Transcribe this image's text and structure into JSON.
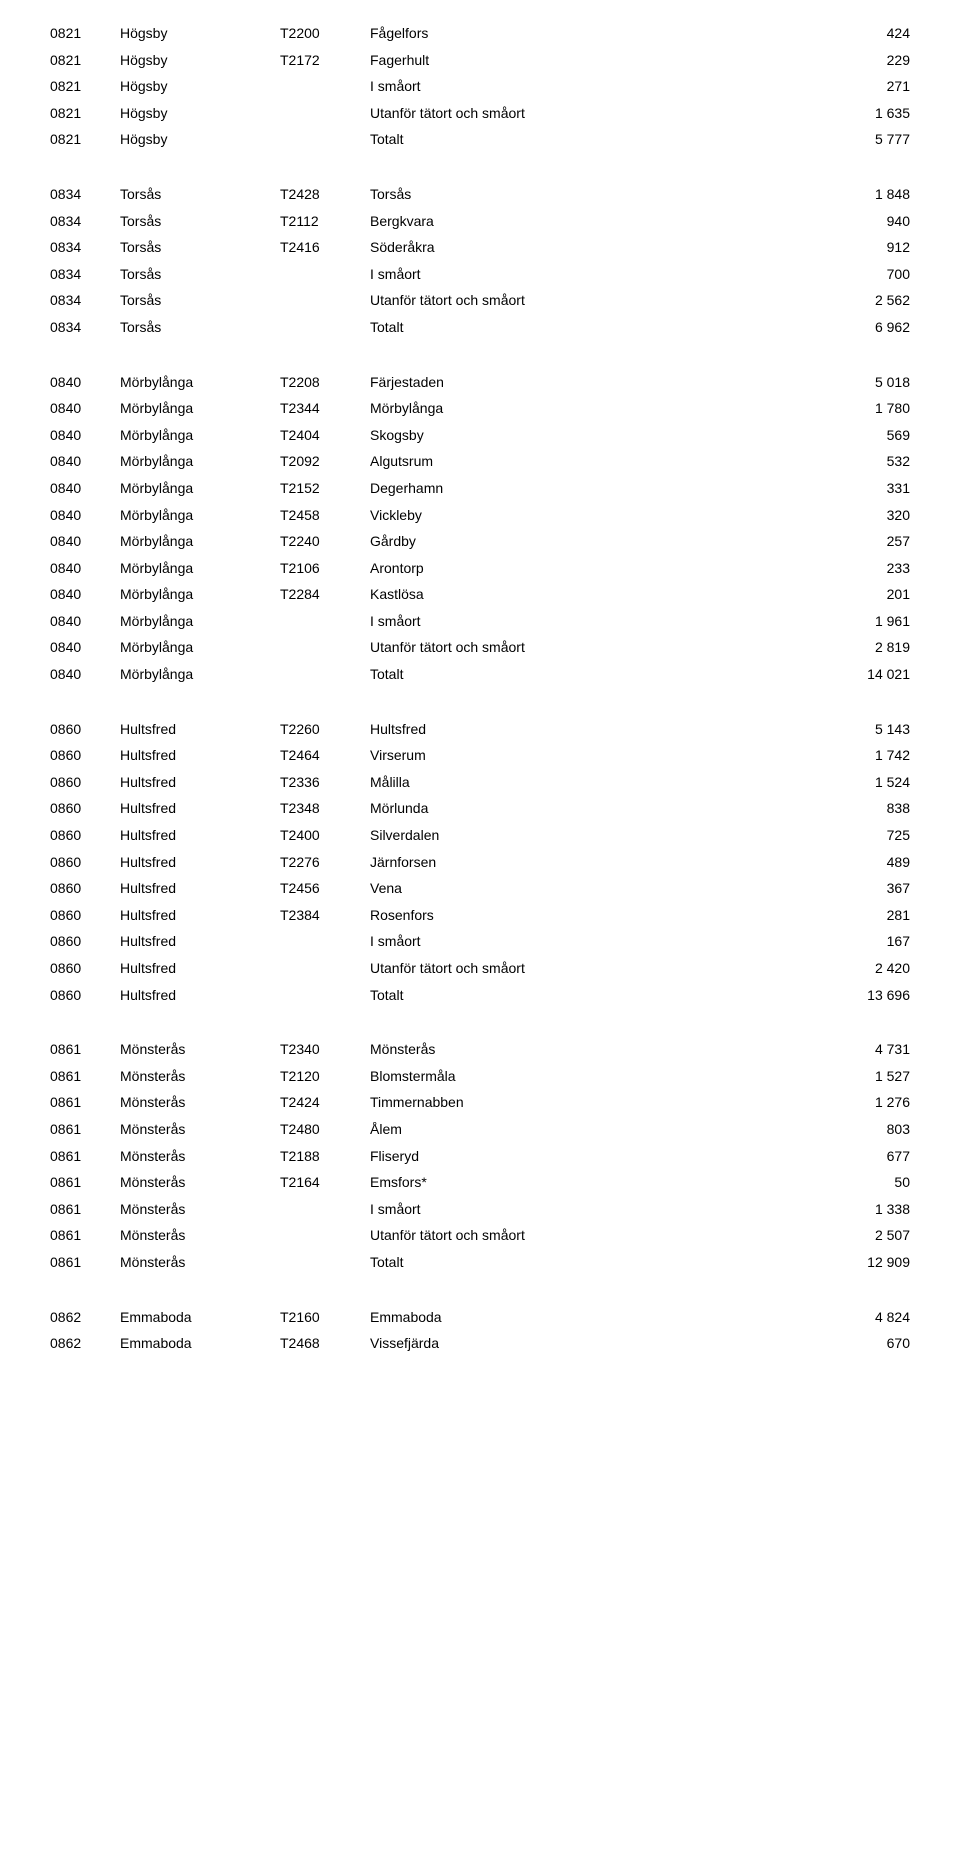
{
  "sections": [
    {
      "rows": [
        {
          "code": "0821",
          "kommun": "Högsby",
          "tcode": "T2200",
          "name": "Fågelfors",
          "val": "424"
        },
        {
          "code": "0821",
          "kommun": "Högsby",
          "tcode": "T2172",
          "name": "Fagerhult",
          "val": "229"
        },
        {
          "code": "0821",
          "kommun": "Högsby",
          "tcode": "",
          "name": "I småort",
          "val": "271"
        },
        {
          "code": "0821",
          "kommun": "Högsby",
          "tcode": "",
          "name": "Utanför tätort och småort",
          "val": "1 635"
        },
        {
          "code": "0821",
          "kommun": "Högsby",
          "tcode": "",
          "name": "Totalt",
          "val": "5 777"
        }
      ]
    },
    {
      "rows": [
        {
          "code": "0834",
          "kommun": "Torsås",
          "tcode": "T2428",
          "name": "Torsås",
          "val": "1 848"
        },
        {
          "code": "0834",
          "kommun": "Torsås",
          "tcode": "T2112",
          "name": "Bergkvara",
          "val": "940"
        },
        {
          "code": "0834",
          "kommun": "Torsås",
          "tcode": "T2416",
          "name": "Söderåkra",
          "val": "912"
        },
        {
          "code": "0834",
          "kommun": "Torsås",
          "tcode": "",
          "name": "I småort",
          "val": "700"
        },
        {
          "code": "0834",
          "kommun": "Torsås",
          "tcode": "",
          "name": "Utanför tätort och småort",
          "val": "2 562"
        },
        {
          "code": "0834",
          "kommun": "Torsås",
          "tcode": "",
          "name": "Totalt",
          "val": "6 962"
        }
      ]
    },
    {
      "rows": [
        {
          "code": "0840",
          "kommun": "Mörbylånga",
          "tcode": "T2208",
          "name": "Färjestaden",
          "val": "5 018"
        },
        {
          "code": "0840",
          "kommun": "Mörbylånga",
          "tcode": "T2344",
          "name": "Mörbylånga",
          "val": "1 780"
        },
        {
          "code": "0840",
          "kommun": "Mörbylånga",
          "tcode": "T2404",
          "name": "Skogsby",
          "val": "569"
        },
        {
          "code": "0840",
          "kommun": "Mörbylånga",
          "tcode": "T2092",
          "name": "Algutsrum",
          "val": "532"
        },
        {
          "code": "0840",
          "kommun": "Mörbylånga",
          "tcode": "T2152",
          "name": "Degerhamn",
          "val": "331"
        },
        {
          "code": "0840",
          "kommun": "Mörbylånga",
          "tcode": "T2458",
          "name": "Vickleby",
          "val": "320"
        },
        {
          "code": "0840",
          "kommun": "Mörbylånga",
          "tcode": "T2240",
          "name": "Gårdby",
          "val": "257"
        },
        {
          "code": "0840",
          "kommun": "Mörbylånga",
          "tcode": "T2106",
          "name": "Arontorp",
          "val": "233"
        },
        {
          "code": "0840",
          "kommun": "Mörbylånga",
          "tcode": "T2284",
          "name": "Kastlösa",
          "val": "201"
        },
        {
          "code": "0840",
          "kommun": "Mörbylånga",
          "tcode": "",
          "name": "I småort",
          "val": "1 961"
        },
        {
          "code": "0840",
          "kommun": "Mörbylånga",
          "tcode": "",
          "name": "Utanför tätort och småort",
          "val": "2 819"
        },
        {
          "code": "0840",
          "kommun": "Mörbylånga",
          "tcode": "",
          "name": "Totalt",
          "val": "14 021"
        }
      ]
    },
    {
      "rows": [
        {
          "code": "0860",
          "kommun": "Hultsfred",
          "tcode": "T2260",
          "name": "Hultsfred",
          "val": "5 143"
        },
        {
          "code": "0860",
          "kommun": "Hultsfred",
          "tcode": "T2464",
          "name": "Virserum",
          "val": "1 742"
        },
        {
          "code": "0860",
          "kommun": "Hultsfred",
          "tcode": "T2336",
          "name": "Målilla",
          "val": "1 524"
        },
        {
          "code": "0860",
          "kommun": "Hultsfred",
          "tcode": "T2348",
          "name": "Mörlunda",
          "val": "838"
        },
        {
          "code": "0860",
          "kommun": "Hultsfred",
          "tcode": "T2400",
          "name": "Silverdalen",
          "val": "725"
        },
        {
          "code": "0860",
          "kommun": "Hultsfred",
          "tcode": "T2276",
          "name": "Järnforsen",
          "val": "489"
        },
        {
          "code": "0860",
          "kommun": "Hultsfred",
          "tcode": "T2456",
          "name": "Vena",
          "val": "367"
        },
        {
          "code": "0860",
          "kommun": "Hultsfred",
          "tcode": "T2384",
          "name": "Rosenfors",
          "val": "281"
        },
        {
          "code": "0860",
          "kommun": "Hultsfred",
          "tcode": "",
          "name": "I småort",
          "val": "167"
        },
        {
          "code": "0860",
          "kommun": "Hultsfred",
          "tcode": "",
          "name": "Utanför tätort och småort",
          "val": "2 420"
        },
        {
          "code": "0860",
          "kommun": "Hultsfred",
          "tcode": "",
          "name": "Totalt",
          "val": "13 696"
        }
      ]
    },
    {
      "rows": [
        {
          "code": "0861",
          "kommun": "Mönsterås",
          "tcode": "T2340",
          "name": "Mönsterås",
          "val": "4 731"
        },
        {
          "code": "0861",
          "kommun": "Mönsterås",
          "tcode": "T2120",
          "name": "Blomstermåla",
          "val": "1 527"
        },
        {
          "code": "0861",
          "kommun": "Mönsterås",
          "tcode": "T2424",
          "name": "Timmernabben",
          "val": "1 276"
        },
        {
          "code": "0861",
          "kommun": "Mönsterås",
          "tcode": "T2480",
          "name": "Ålem",
          "val": "803"
        },
        {
          "code": "0861",
          "kommun": "Mönsterås",
          "tcode": "T2188",
          "name": "Fliseryd",
          "val": "677"
        },
        {
          "code": "0861",
          "kommun": "Mönsterås",
          "tcode": "T2164",
          "name": "Emsfors*",
          "val": "50"
        },
        {
          "code": "0861",
          "kommun": "Mönsterås",
          "tcode": "",
          "name": "I småort",
          "val": "1 338"
        },
        {
          "code": "0861",
          "kommun": "Mönsterås",
          "tcode": "",
          "name": "Utanför tätort och småort",
          "val": "2 507"
        },
        {
          "code": "0861",
          "kommun": "Mönsterås",
          "tcode": "",
          "name": "Totalt",
          "val": "12 909"
        }
      ]
    },
    {
      "rows": [
        {
          "code": "0862",
          "kommun": "Emmaboda",
          "tcode": "T2160",
          "name": "Emmaboda",
          "val": "4 824"
        },
        {
          "code": "0862",
          "kommun": "Emmaboda",
          "tcode": "T2468",
          "name": "Vissefjärda",
          "val": "670"
        }
      ]
    }
  ]
}
